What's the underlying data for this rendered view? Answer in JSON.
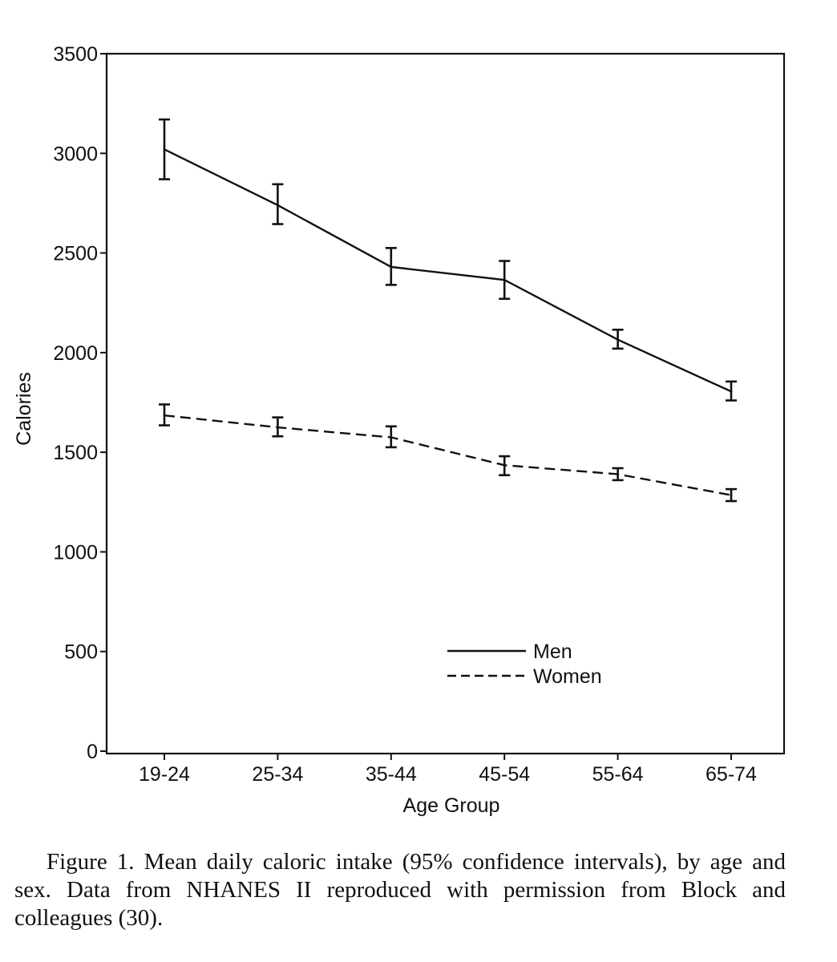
{
  "chart_data": {
    "type": "line",
    "title": "",
    "xlabel": "Age Group",
    "ylabel": "Calories",
    "categories": [
      "19-24",
      "25-34",
      "35-44",
      "45-54",
      "55-64",
      "65-74"
    ],
    "yticks": [
      "0",
      "500",
      "1000",
      "1500",
      "2000",
      "2500",
      "3000",
      "3500"
    ],
    "ylim": [
      0,
      3500
    ],
    "grid": false,
    "legend_position": "bottom-right",
    "series": [
      {
        "name": "Men",
        "line_style": "solid",
        "values": [
          3020,
          2740,
          2430,
          2365,
          2065,
          1805
        ],
        "ci_low": [
          2870,
          2645,
          2340,
          2270,
          2020,
          1760
        ],
        "ci_high": [
          3170,
          2845,
          2525,
          2460,
          2115,
          1855
        ]
      },
      {
        "name": "Women",
        "line_style": "dashed",
        "values": [
          1685,
          1625,
          1575,
          1435,
          1390,
          1285
        ],
        "ci_low": [
          1635,
          1580,
          1525,
          1385,
          1360,
          1255
        ],
        "ci_high": [
          1740,
          1675,
          1630,
          1480,
          1420,
          1315
        ]
      }
    ]
  },
  "caption": "Figure 1. Mean daily caloric intake (95% confidence intervals), by age and sex. Data from NHANES II reproduced with permission from Block and colleagues (30)."
}
